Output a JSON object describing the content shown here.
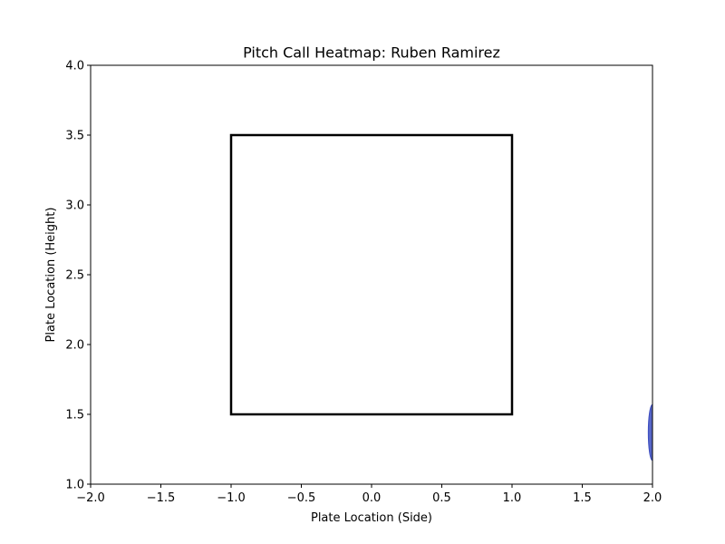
{
  "chart_data": {
    "type": "heatmap",
    "title": "Pitch Call Heatmap: Ruben Ramirez",
    "xlabel": "Plate Location (Side)",
    "ylabel": "Plate Location (Height)",
    "xlim": [
      -2.0,
      2.0
    ],
    "ylim": [
      1.0,
      4.0
    ],
    "x_ticks": [
      "−2.0",
      "−1.5",
      "−1.0",
      "−0.5",
      "0.0",
      "0.5",
      "1.0",
      "1.5",
      "2.0"
    ],
    "y_ticks": [
      "1.0",
      "1.5",
      "2.0",
      "2.5",
      "3.0",
      "3.5",
      "4.0"
    ],
    "grid": false,
    "strike_zone": {
      "x": [
        -1.0,
        1.0
      ],
      "y": [
        1.5,
        3.5
      ]
    },
    "density_blobs": [
      {
        "x": 2.0,
        "y": 1.37,
        "x_spread": 0.03,
        "y_spread": 0.2,
        "color": "#3b4cc0"
      }
    ]
  }
}
